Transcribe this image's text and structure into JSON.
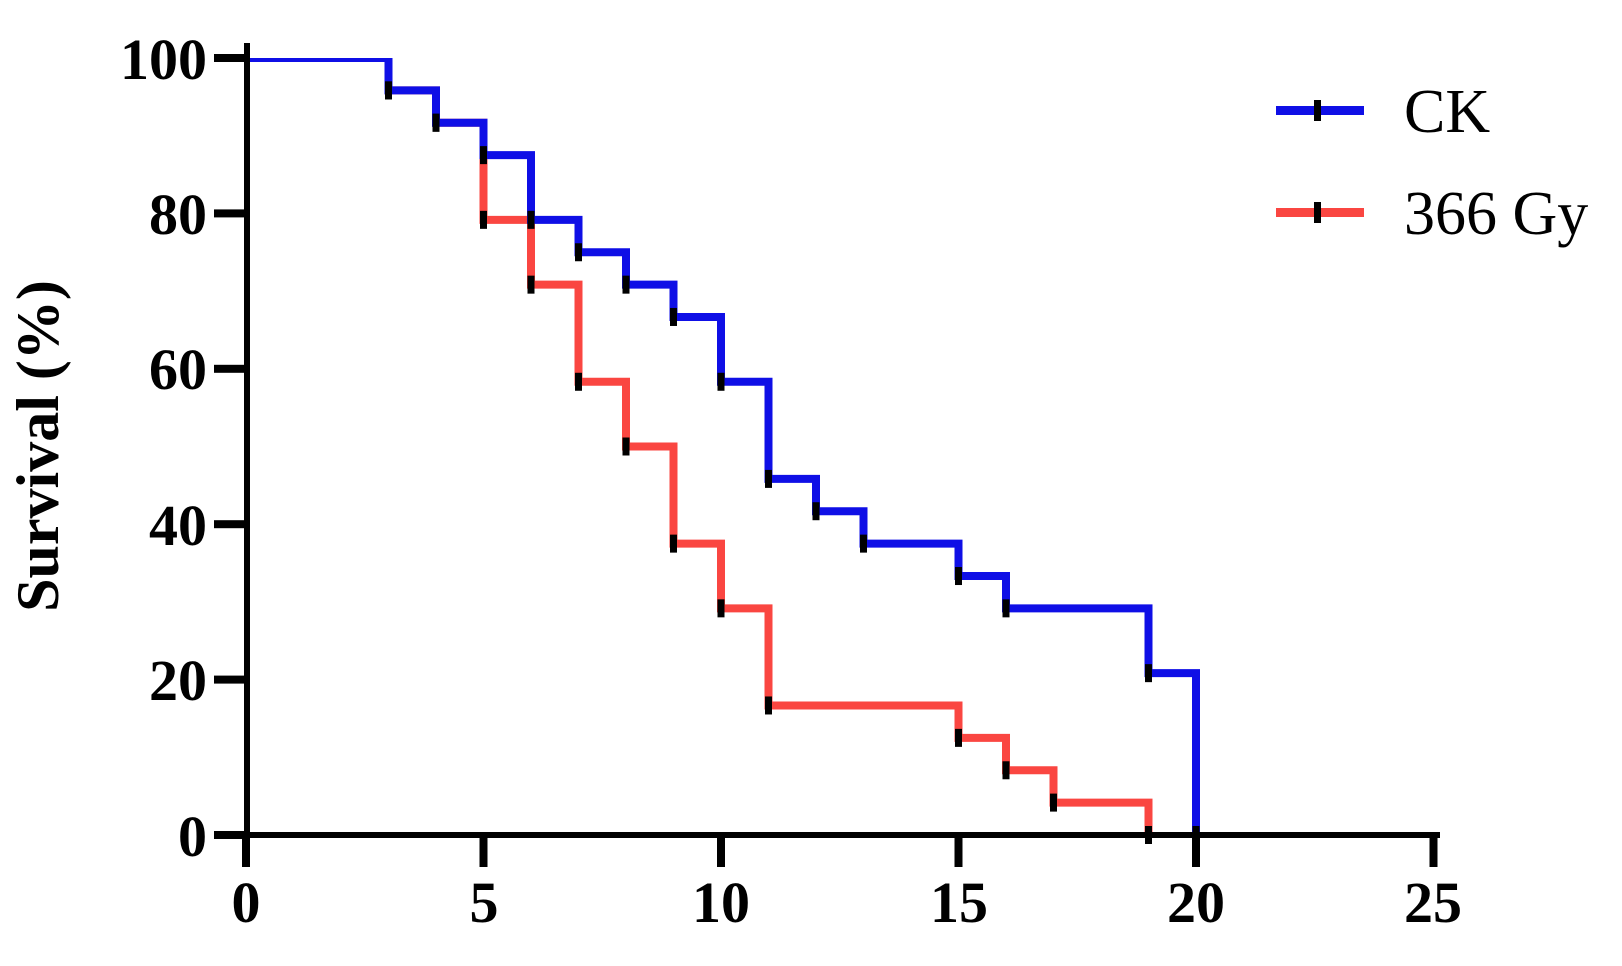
{
  "figure": {
    "background": "#ffffff",
    "axis_color": "#000000",
    "marker_color": "#000000"
  },
  "chart_data": {
    "type": "line",
    "subtype": "kaplan-meier-step",
    "title": "",
    "xlabel": "",
    "ylabel": "Survival (%)",
    "xlim": [
      0,
      25
    ],
    "ylim": [
      0,
      100
    ],
    "x_tick_labels": [
      "0",
      "5",
      "10",
      "15",
      "20",
      "25"
    ],
    "x_tick_values": [
      0,
      5,
      10,
      15,
      20,
      25
    ],
    "y_tick_labels": [
      "100",
      "80",
      "60",
      "40",
      "20",
      "0"
    ],
    "y_tick_values": [
      100,
      80,
      60,
      40,
      20,
      0
    ],
    "grid": false,
    "legend_position": "top-right",
    "event_marker": "black-vertical-dash",
    "series": [
      {
        "name": "CK",
        "color": "#0f0fe6",
        "steps": [
          [
            0,
            100
          ],
          [
            3,
            95.83
          ],
          [
            4,
            91.67
          ],
          [
            5,
            87.5
          ],
          [
            6,
            79.17
          ],
          [
            7,
            75
          ],
          [
            8,
            70.83
          ],
          [
            9,
            66.67
          ],
          [
            10,
            58.33
          ],
          [
            11,
            45.83
          ],
          [
            12,
            41.67
          ],
          [
            13,
            37.5
          ],
          [
            15,
            33.33
          ],
          [
            16,
            29.17
          ],
          [
            19,
            20.83
          ],
          [
            20,
            0
          ]
        ]
      },
      {
        "name": "366 Gy",
        "color": "#fa4641",
        "steps": [
          [
            0,
            100
          ],
          [
            3,
            95.83
          ],
          [
            4,
            91.67
          ],
          [
            5,
            79.17
          ],
          [
            6,
            70.83
          ],
          [
            7,
            58.33
          ],
          [
            8,
            50
          ],
          [
            9,
            37.5
          ],
          [
            10,
            29.17
          ],
          [
            11,
            16.67
          ],
          [
            15,
            12.5
          ],
          [
            16,
            8.33
          ],
          [
            17,
            4.17
          ],
          [
            19,
            0
          ]
        ]
      }
    ]
  }
}
